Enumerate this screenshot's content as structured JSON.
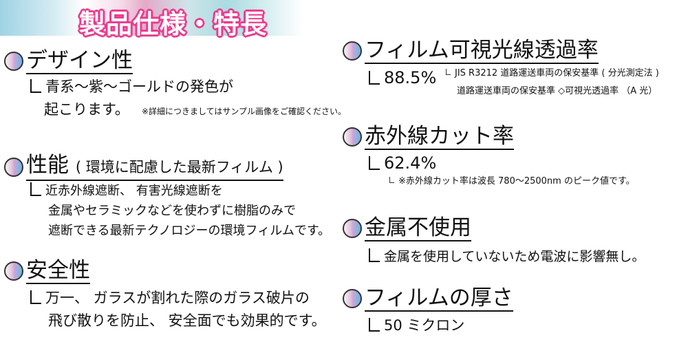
{
  "banner": {
    "title": "製品仕様・特長"
  },
  "left": [
    {
      "title": "デザイン性",
      "lines": [
        "青系～紫～ゴールドの発色が",
        "起こります。"
      ],
      "note": "※詳細につきましてはサンプル画像をご確認ください。"
    },
    {
      "title": "性能",
      "subtitle": "( 環境に配慮した最新フィルム )",
      "lines": [
        "近赤外線遮断、 有害光線遮断を",
        "金属やセラミックなどを使わずに樹脂のみで",
        "遮断できる最新テクノロジーの環境フィルムです。"
      ]
    },
    {
      "title": "安全性",
      "lines": [
        "万一、 ガラスが割れた際のガラス破片の",
        "飛び散りを防止、 安全面でも効果的です。"
      ]
    }
  ],
  "right": [
    {
      "title": "フィルム可視光線透過率",
      "value": "88.5%",
      "notes": [
        "JIS R3212 道路運送車両の保安基準 ( 分光測定法 )",
        "道路運送車両の保安基準 ◇可視光透過率 （A 光）"
      ]
    },
    {
      "title": "赤外線カット率",
      "value": "62.4%",
      "notes": [
        "※赤外線カット率は波長 780～2500nm のピーク値です。"
      ]
    },
    {
      "title": "金属不使用",
      "value": "金属を使用していないため電波に影響無し。"
    },
    {
      "title": "フィルムの厚さ",
      "value": "50 ミクロン"
    }
  ]
}
